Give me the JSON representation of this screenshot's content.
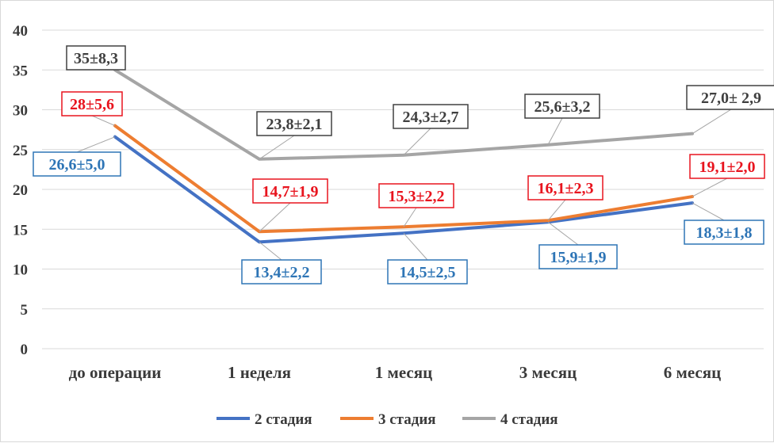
{
  "chart_data": {
    "type": "line",
    "categories": [
      "до операции",
      "1 неделя",
      "1 месяц",
      "3 месяц",
      "6 месяц"
    ],
    "ylim": [
      0,
      40
    ],
    "yticks": [
      0,
      5,
      10,
      15,
      20,
      25,
      30,
      35,
      40
    ],
    "grid": true,
    "legend_position": "bottom",
    "series": [
      {
        "name": "2 стадия",
        "color": "#4472c4",
        "label_color": "#2e75b6",
        "values": [
          26.6,
          13.4,
          14.5,
          15.9,
          18.3
        ],
        "labels": [
          "26,6±5,0",
          "13,4±2,2",
          "14,5±2,5",
          "15,9±1,9",
          "18,3±1,8"
        ]
      },
      {
        "name": "3 стадия",
        "color": "#ed7d31",
        "label_color": "#e8141e",
        "values": [
          28.0,
          14.7,
          15.3,
          16.1,
          19.1
        ],
        "labels": [
          "28±5,6",
          "14,7±1,9",
          "15,3±2,2",
          "16,1±2,3",
          "19,1±2,0"
        ]
      },
      {
        "name": "4 стадия",
        "color": "#a5a5a5",
        "label_color": "#404040",
        "values": [
          35.0,
          23.8,
          24.3,
          25.6,
          27.0
        ],
        "labels": [
          "35±8,3",
          "23,8±2,1",
          "24,3±2,7",
          "25,6±3,2",
          "27,0± 2,9"
        ]
      }
    ]
  }
}
